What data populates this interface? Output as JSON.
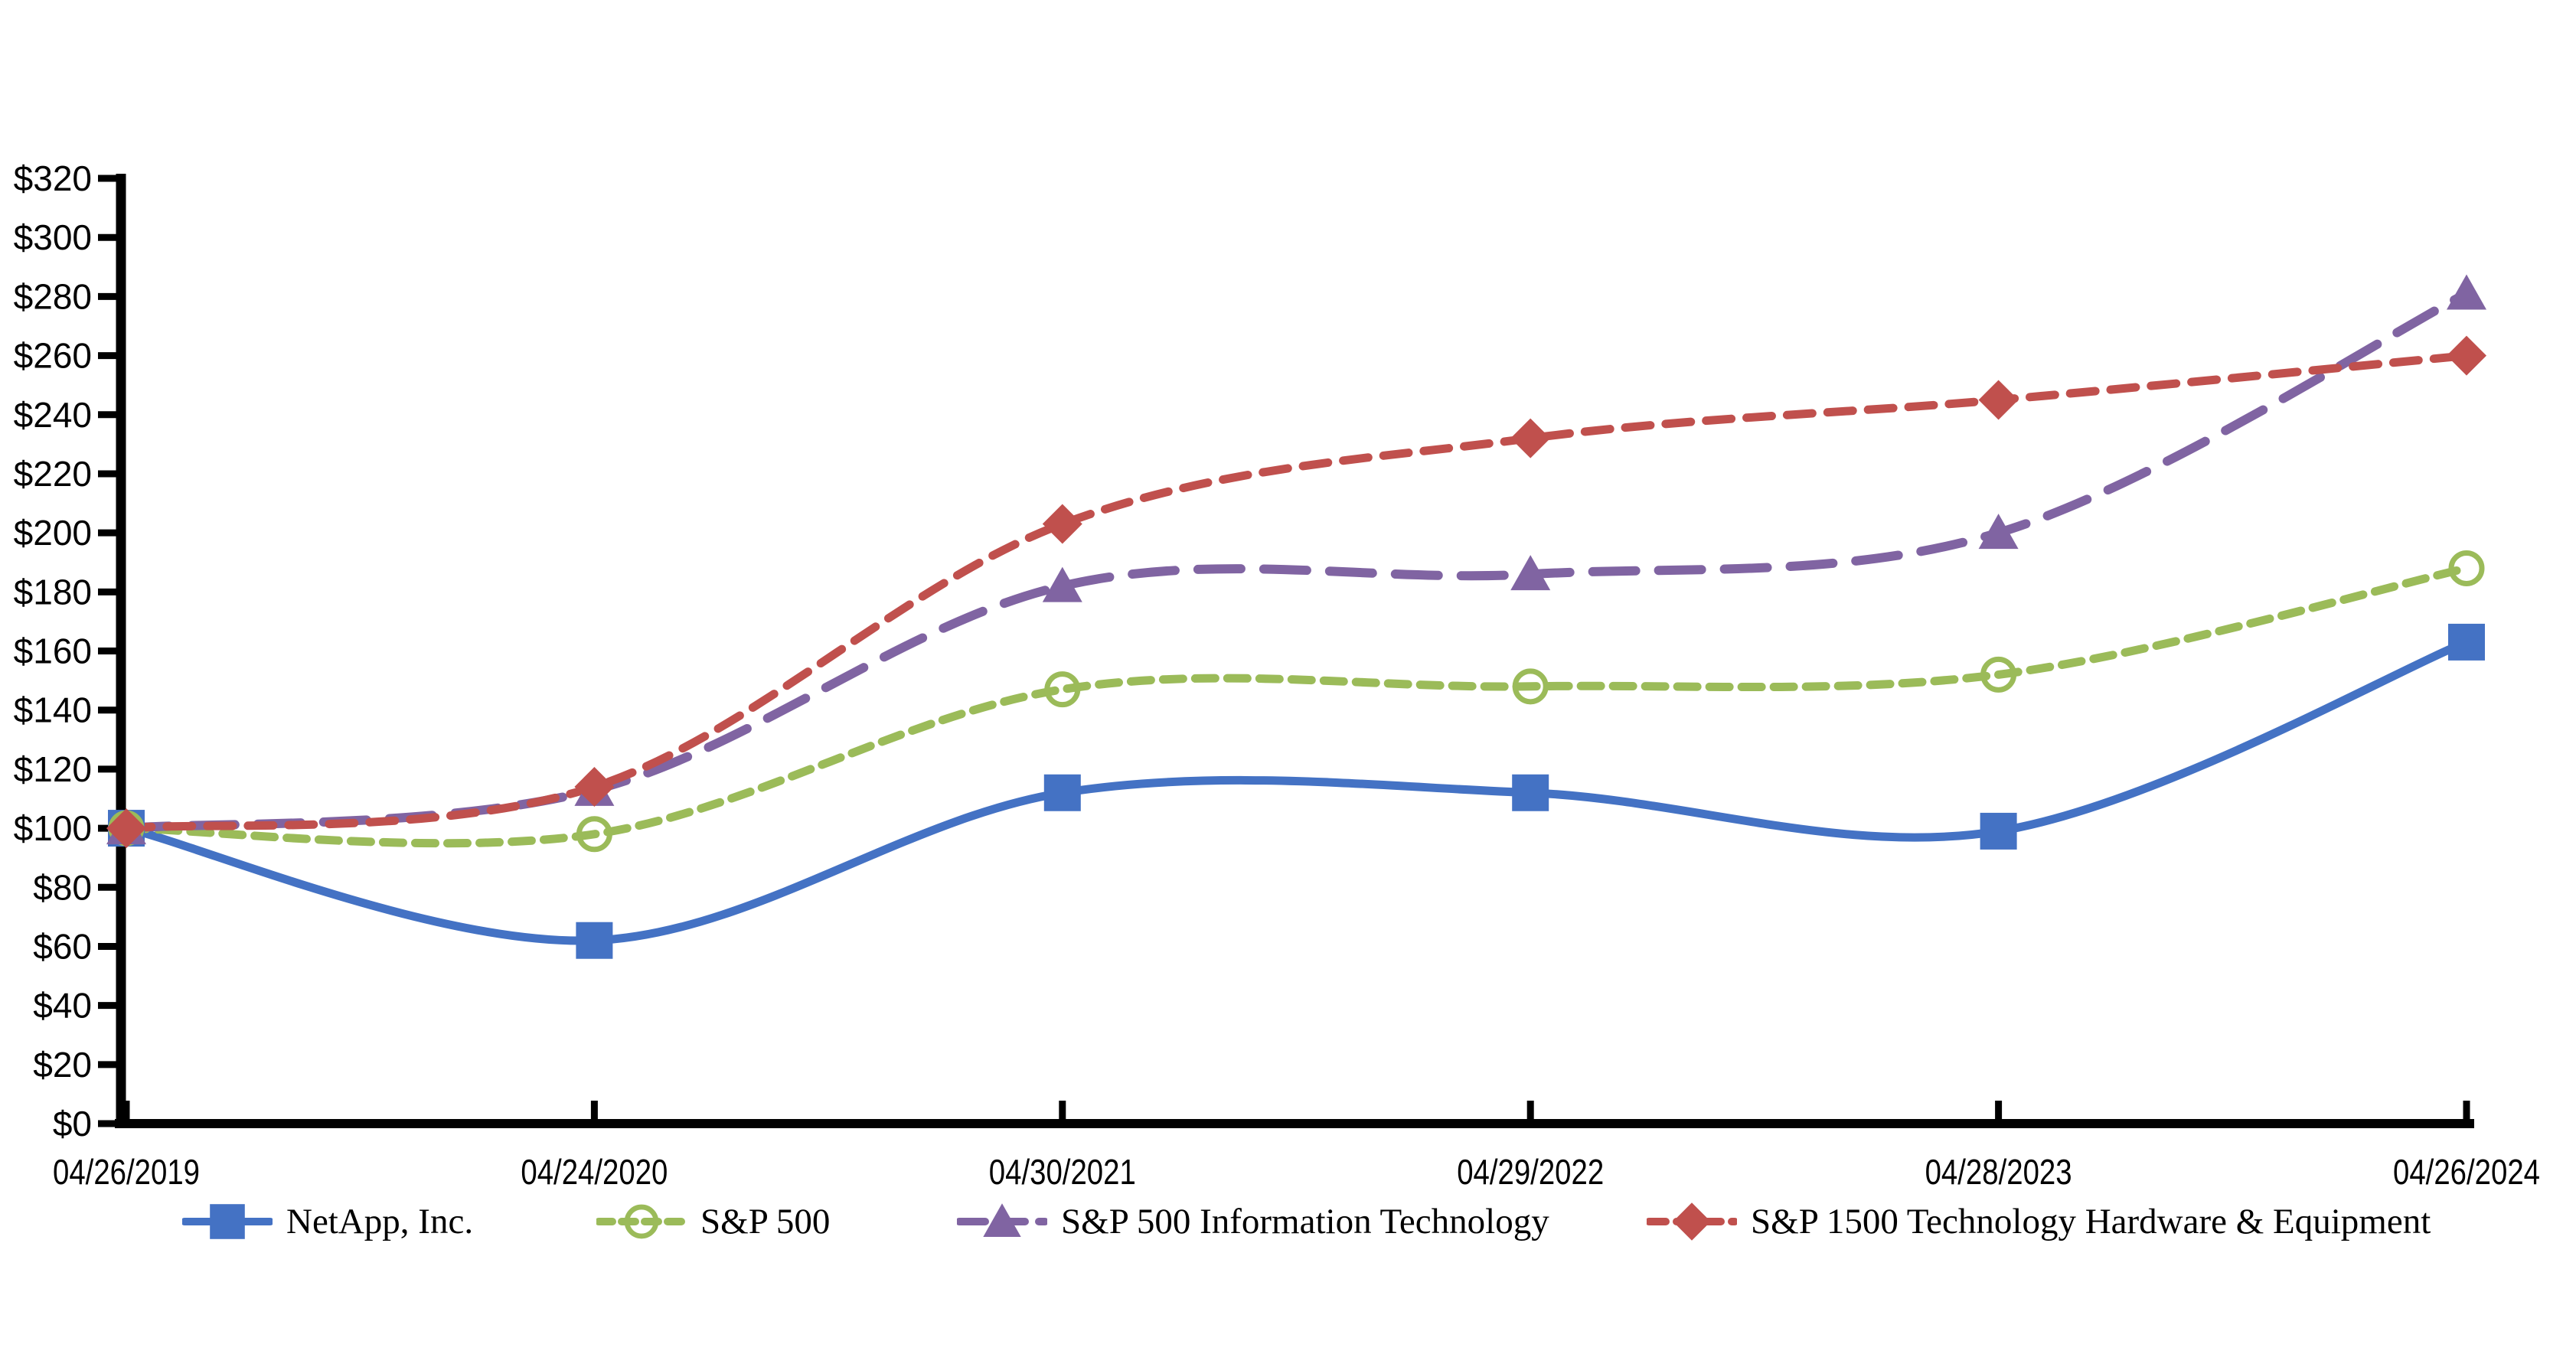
{
  "chart_data": {
    "type": "line",
    "title": "",
    "xlabel": "",
    "ylabel": "",
    "ylim": [
      0,
      320
    ],
    "y_tick_step": 20,
    "grid": false,
    "legend_position": "bottom",
    "x_labels": [
      "04/26/2019",
      "04/24/2020",
      "04/30/2021",
      "04/29/2022",
      "04/28/2023",
      "04/26/2024"
    ],
    "y_tick_labels": [
      "$0",
      "$20",
      "$40",
      "$60",
      "$80",
      "$100",
      "$120",
      "$140",
      "$160",
      "$180",
      "$200",
      "$220",
      "$240",
      "$260",
      "$280",
      "$300",
      "$320"
    ],
    "series": [
      {
        "name": "NetApp, Inc.",
        "color": "#4472C4",
        "line_style": "solid",
        "marker": "square",
        "values": [
          100,
          62,
          112,
          112,
          99,
          163
        ]
      },
      {
        "name": "S&P 500",
        "color": "#9BBB59",
        "line_style": "dashed-short",
        "marker": "circle-open",
        "values": [
          100,
          98,
          147,
          148,
          152,
          188
        ]
      },
      {
        "name": "S&P 500 Information Technology",
        "color": "#8064A2",
        "line_style": "dashed-long",
        "marker": "triangle",
        "values": [
          100,
          113,
          182,
          186,
          200,
          281
        ]
      },
      {
        "name": "S&P 1500 Technology Hardware & Equipment",
        "color": "#C0504D",
        "line_style": "dashed-medium",
        "marker": "diamond",
        "values": [
          100,
          114,
          203,
          232,
          245,
          260
        ]
      }
    ]
  }
}
